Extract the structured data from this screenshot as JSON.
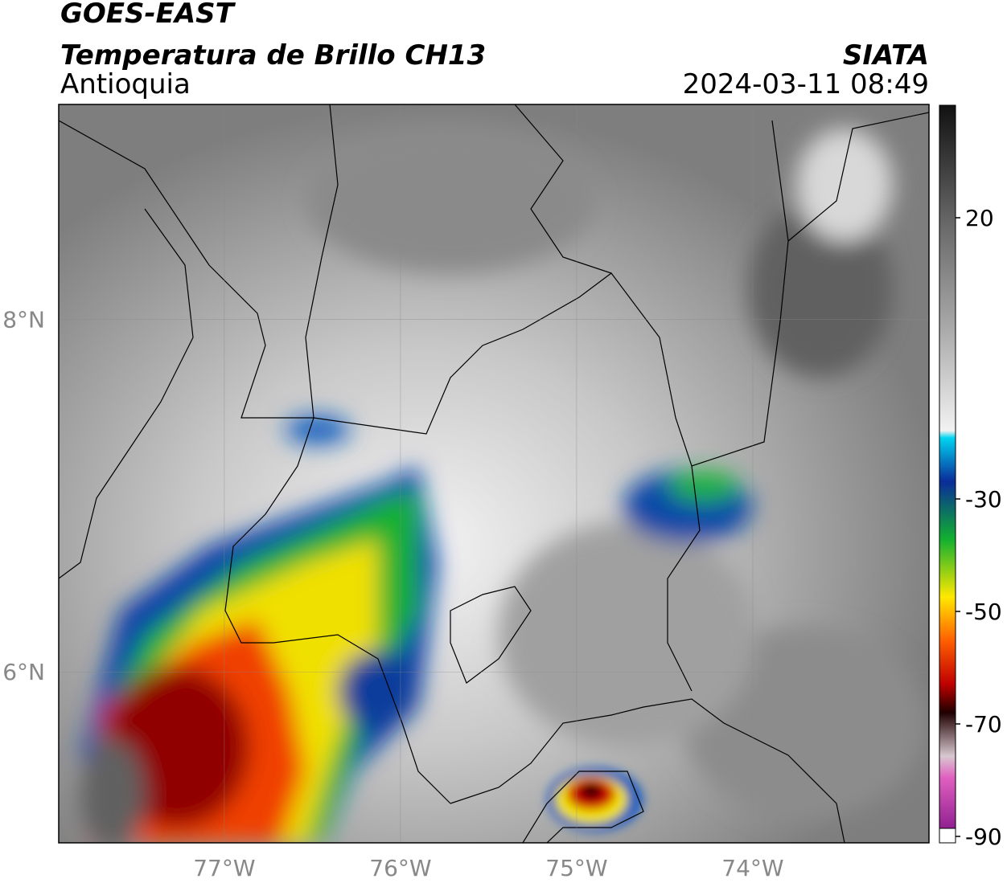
{
  "header": {
    "title": "GOES-EAST",
    "subtitle": "Temperatura de Brillo CH13",
    "region": "Antioquia",
    "source": "SIATA",
    "datetime": "2024-03-11 08:49"
  },
  "map": {
    "xlim": [
      -77.94,
      -73.0
    ],
    "ylim": [
      5.03,
      9.22
    ],
    "xticks": [
      {
        "value": -77,
        "label": "77°W"
      },
      {
        "value": -76,
        "label": "76°W"
      },
      {
        "value": -75,
        "label": "75°W"
      },
      {
        "value": -74,
        "label": "74°W"
      }
    ],
    "yticks": [
      {
        "value": 8,
        "label": "8°N"
      },
      {
        "value": 6,
        "label": "6°N"
      }
    ]
  },
  "colorbar": {
    "lim": [
      -90,
      40
    ],
    "ticks": [
      20,
      -30,
      -50,
      -70,
      -90
    ]
  }
}
